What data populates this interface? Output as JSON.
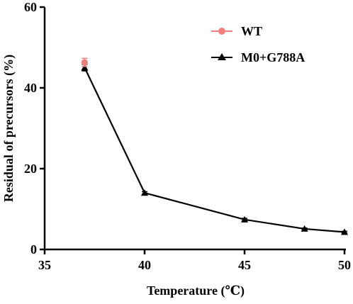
{
  "chart_data": {
    "type": "line",
    "xlabel": "Temperature (℃)",
    "ylabel": "Residual of precursors (%)",
    "xlim": [
      35,
      50
    ],
    "ylim": [
      0,
      60
    ],
    "xticks": [
      "35",
      "40",
      "45",
      "50"
    ],
    "yticks": [
      "0",
      "20",
      "40",
      "60"
    ],
    "grid": false,
    "legend_position": "top-right",
    "series": [
      {
        "name": "WT",
        "marker": "circle",
        "color": "#f08080",
        "line": false,
        "points": [
          {
            "x": 37,
            "y": 46.3,
            "err": 1.0
          }
        ]
      },
      {
        "name": "M0+G788A",
        "marker": "triangle",
        "color": "#000000",
        "line": true,
        "points": [
          {
            "x": 37,
            "y": 45.0,
            "err": 0.8
          },
          {
            "x": 40,
            "y": 14.0,
            "err": 0.3
          },
          {
            "x": 45,
            "y": 7.4,
            "err": 0.3
          },
          {
            "x": 48,
            "y": 5.1,
            "err": 0.2
          },
          {
            "x": 50,
            "y": 4.3,
            "err": 0.2
          }
        ]
      }
    ]
  }
}
